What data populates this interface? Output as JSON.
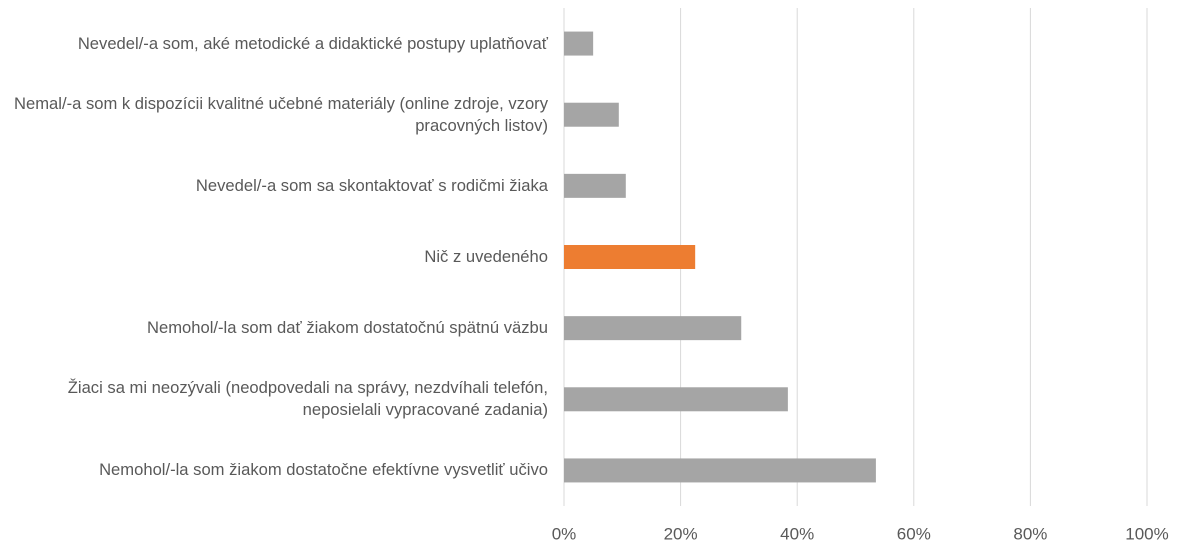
{
  "chart_data": {
    "type": "bar",
    "orientation": "horizontal",
    "categories": [
      "Nevedel/-a som, aké metodické a didaktické postupy uplatňovať",
      "Nemal/-a som k dispozícii kvalitné učebné materiály (online zdroje, vzory pracovných listov)",
      "Nevedel/-a som sa skontaktovať s rodičmi žiaka",
      "Nič z uvedeného",
      "Nemohol/-la som dať žiakom dostatočnú spätnú väzbu",
      "Žiaci sa mi neozývali (neodpovedali na správy, nezdvíhali telefón, neposielali vypracované zadania)",
      "Nemohol/-la som žiakom dostatočne efektívne vysvetliť učivo"
    ],
    "values": [
      5.0,
      9.4,
      10.6,
      22.5,
      30.4,
      38.4,
      53.5
    ],
    "colors": [
      "#a5a5a5",
      "#a5a5a5",
      "#a5a5a5",
      "#ed7d31",
      "#a5a5a5",
      "#a5a5a5",
      "#a5a5a5"
    ],
    "xlim": [
      0,
      100
    ],
    "xticks": [
      {
        "value": 0,
        "label": "0%"
      },
      {
        "value": 20,
        "label": "20%"
      },
      {
        "value": 40,
        "label": "40%"
      },
      {
        "value": 60,
        "label": "60%"
      },
      {
        "value": 80,
        "label": "80%"
      },
      {
        "value": 100,
        "label": "100%"
      }
    ],
    "grid": true
  }
}
